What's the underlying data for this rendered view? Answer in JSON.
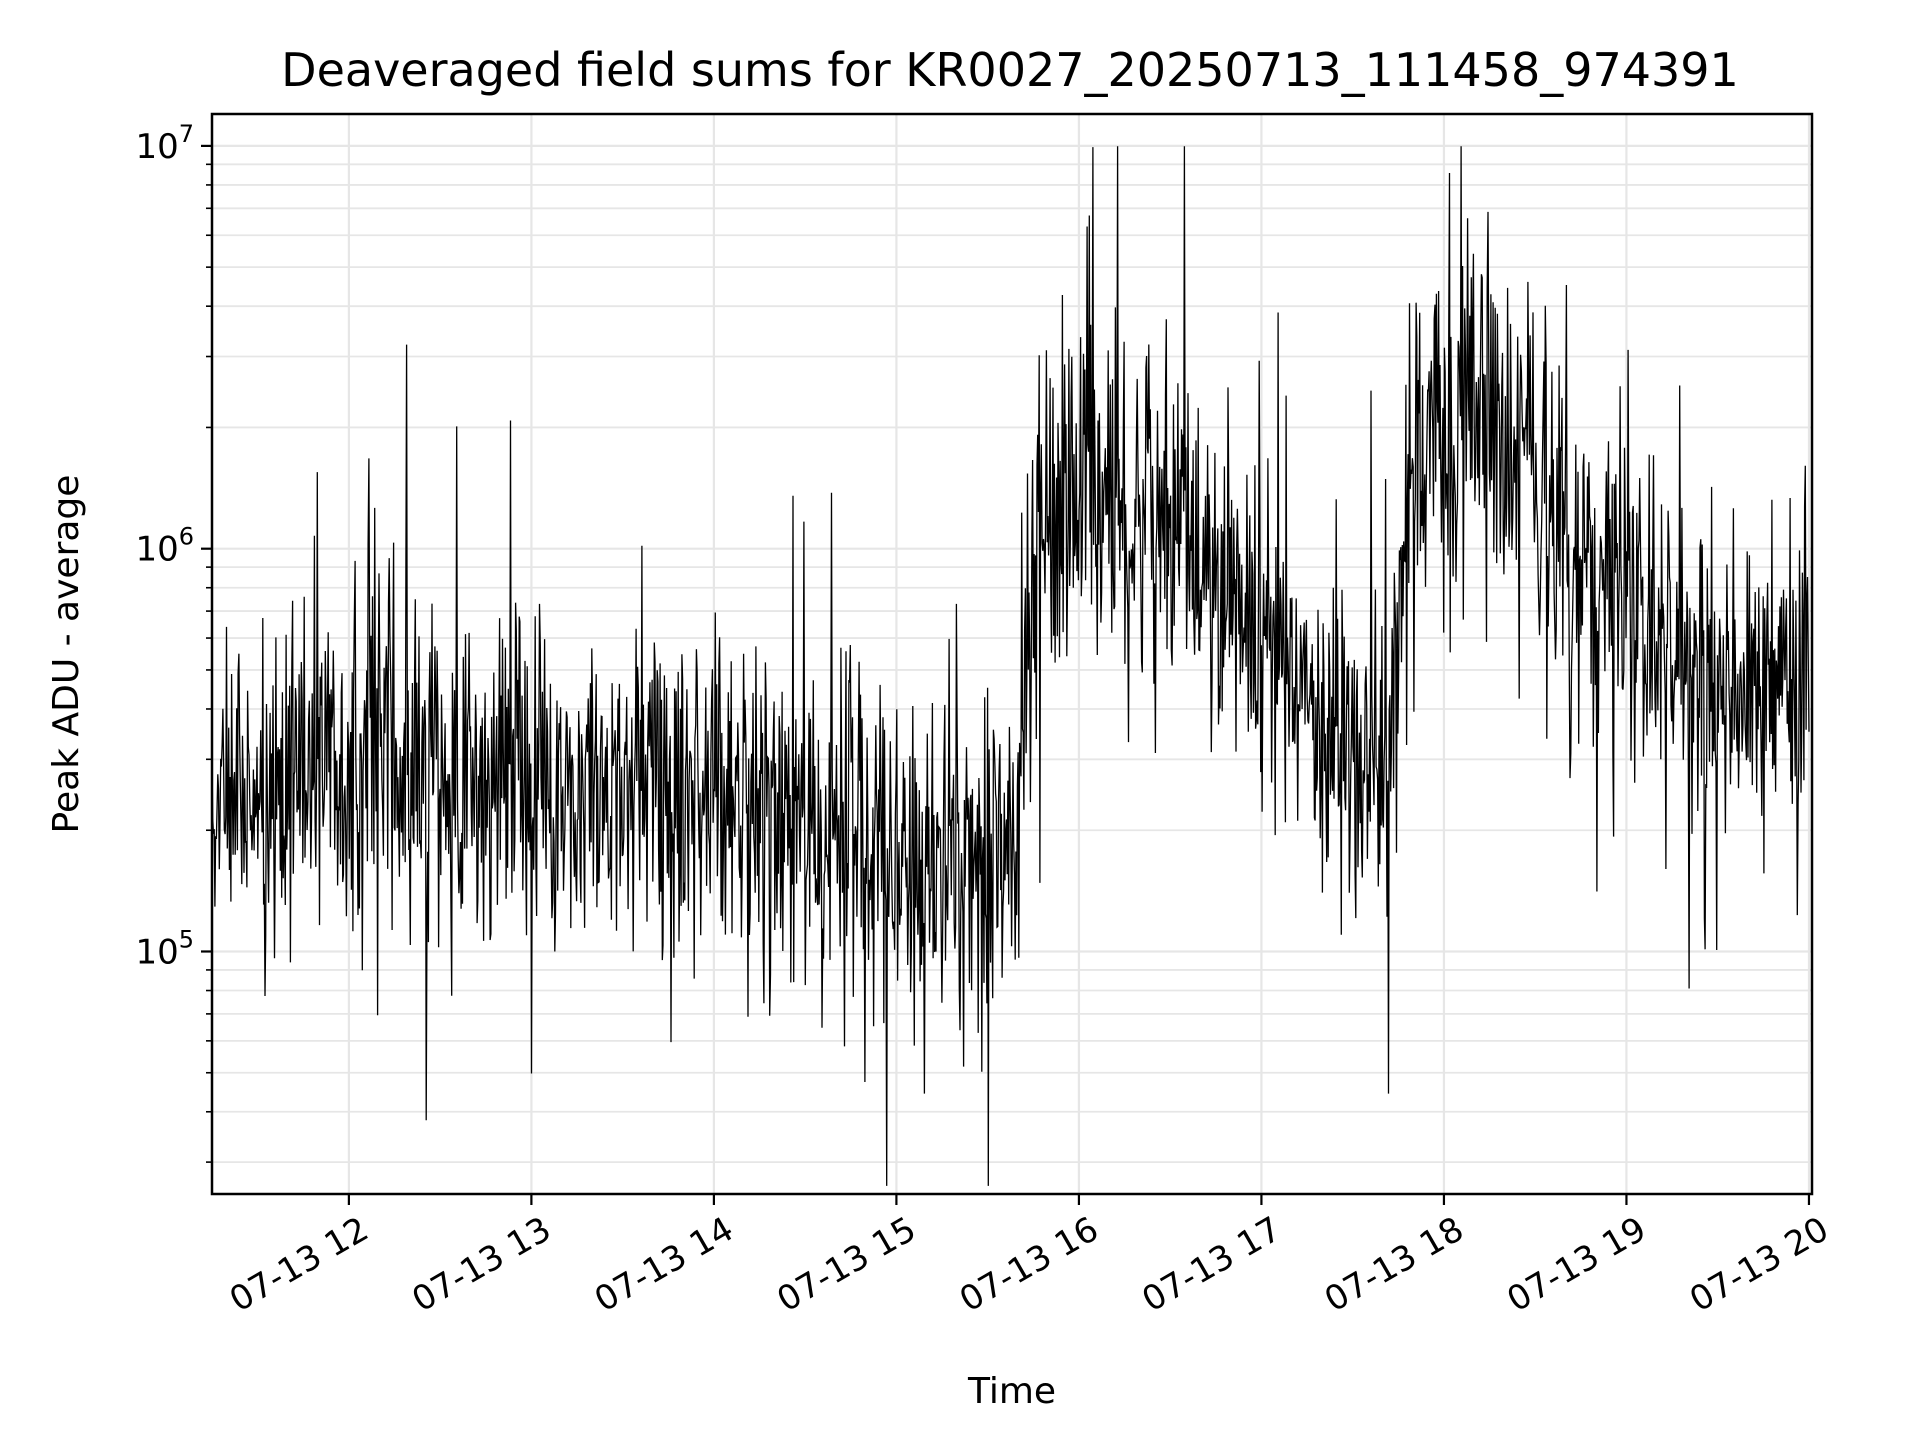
{
  "chart_data": {
    "type": "line",
    "title": "Deaveraged field sums for KR0027_20250713_111458_974391",
    "xlabel": "Time",
    "ylabel": "Peak ADU - average",
    "y_scale": "log",
    "ylim": [
      25000,
      12000000
    ],
    "xlim": [
      "07-13 11:15",
      "07-13 20:01"
    ],
    "grid": true,
    "line_color": "#000000",
    "grid_color": "#e6e6e6",
    "x_ticks": [
      "07-13 12",
      "07-13 13",
      "07-13 14",
      "07-13 15",
      "07-13 16",
      "07-13 17",
      "07-13 18",
      "07-13 19",
      "07-13 20"
    ],
    "x_tick_hours": [
      12,
      13,
      14,
      15,
      16,
      17,
      18,
      19,
      20
    ],
    "y_ticks": [
      {
        "base": "10",
        "exp": "5",
        "value": 100000
      },
      {
        "base": "10",
        "exp": "6",
        "value": 1000000
      },
      {
        "base": "10",
        "exp": "7",
        "value": 10000000
      }
    ],
    "series": [
      {
        "x_hours": [
          11.25,
          11.5,
          11.75,
          12.0,
          12.25,
          12.5,
          12.75,
          13.0,
          13.25,
          13.5,
          13.75,
          14.0,
          14.25,
          14.5,
          14.75,
          15.0,
          15.25,
          15.5,
          15.65,
          15.72,
          15.8,
          16.0,
          16.25,
          16.5,
          16.75,
          17.0,
          17.25,
          17.5,
          17.7,
          17.78,
          17.85,
          18.0,
          18.25,
          18.5,
          18.75,
          19.0,
          19.25,
          19.5,
          19.75,
          20.0
        ],
        "y": [
          250000,
          230000,
          270000,
          300000,
          320000,
          280000,
          260000,
          250000,
          230000,
          240000,
          260000,
          250000,
          210000,
          190000,
          180000,
          170000,
          160000,
          160000,
          170000,
          700000,
          1200000,
          1300000,
          1400000,
          1100000,
          800000,
          600000,
          380000,
          300000,
          280000,
          1000000,
          1800000,
          2200000,
          2000000,
          1300000,
          900000,
          700000,
          550000,
          450000,
          420000,
          450000
        ]
      }
    ]
  }
}
